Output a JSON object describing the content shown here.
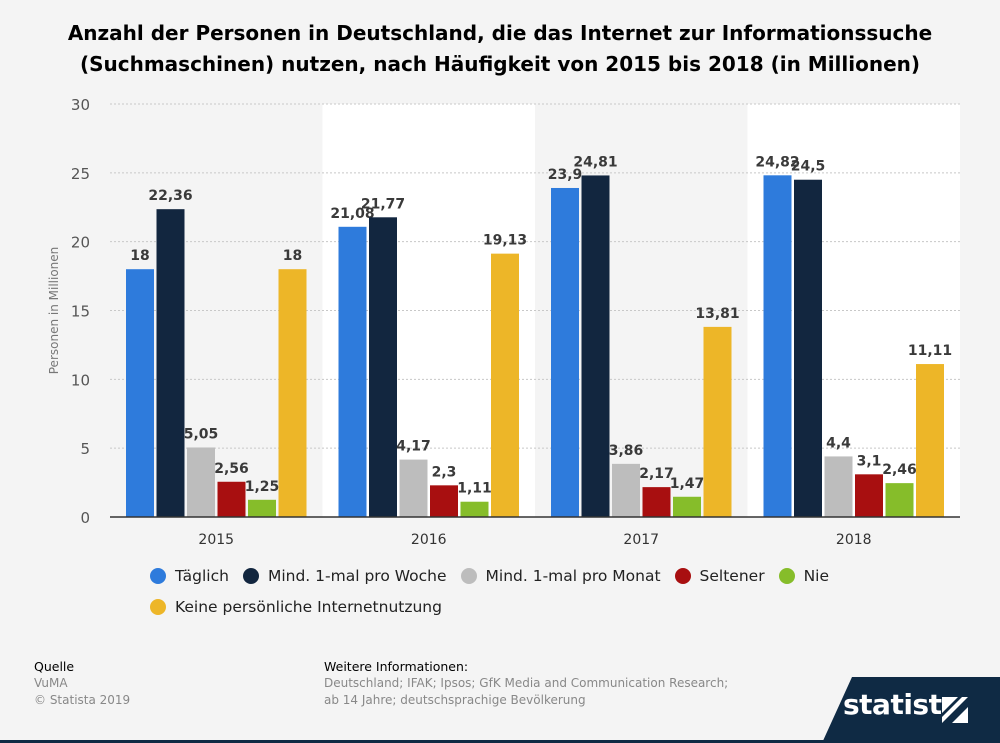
{
  "header": {
    "title_line1": "Anzahl der Personen in Deutschland, die das Internet zur Informationssuche",
    "title_line2": "(Suchmaschinen) nutzen, nach Häufigkeit von 2015 bis 2018 (in Millionen)"
  },
  "chart_data": {
    "type": "bar",
    "title": "Anzahl der Personen in Deutschland, die das Internet zur Informationssuche (Suchmaschinen) nutzen, nach Häufigkeit von 2015 bis 2018 (in Millionen)",
    "xlabel": "",
    "ylabel": "Personen in Millionen",
    "ylim": [
      0,
      30
    ],
    "yticks": [
      0,
      5,
      10,
      15,
      20,
      25,
      30
    ],
    "ytick_labels": [
      "0",
      "5",
      "10",
      "15",
      "20",
      "25",
      "30"
    ],
    "grid": true,
    "legend_position": "bottom",
    "categories": [
      "2015",
      "2016",
      "2017",
      "2018"
    ],
    "series": [
      {
        "name": "Täglich",
        "color": "#2e7bdc",
        "values": [
          18,
          21.08,
          23.9,
          24.82
        ],
        "labels": [
          "18",
          "21,08",
          "23,9",
          "24,82"
        ]
      },
      {
        "name": "Mind. 1-mal pro Woche",
        "color": "#12263f",
        "values": [
          22.36,
          21.77,
          24.81,
          24.5
        ],
        "labels": [
          "22,36",
          "21,77",
          "24,81",
          "24,5"
        ]
      },
      {
        "name": "Mind. 1-mal pro Monat",
        "color": "#bdbdbd",
        "values": [
          5.05,
          4.17,
          3.86,
          4.4
        ],
        "labels": [
          "5,05",
          "4,17",
          "3,86",
          "4,4"
        ]
      },
      {
        "name": "Seltener",
        "color": "#a80f10",
        "values": [
          2.56,
          2.3,
          2.17,
          3.1
        ],
        "labels": [
          "2,56",
          "2,3",
          "2,17",
          "3,1"
        ]
      },
      {
        "name": "Nie",
        "color": "#86bd2a",
        "values": [
          1.25,
          1.11,
          1.47,
          2.46
        ],
        "labels": [
          "1,25",
          "1,11",
          "1,47",
          "2,46"
        ]
      },
      {
        "name": "Keine persönliche Internetnutzung",
        "color": "#edb628",
        "values": [
          18,
          19.13,
          13.81,
          11.11
        ],
        "labels": [
          "18",
          "19,13",
          "13,81",
          "11,11"
        ]
      }
    ]
  },
  "footer": {
    "source_heading": "Quelle",
    "source_name": "VuMA",
    "copyright": "© Statista 2019",
    "info_heading": "Weitere Informationen:",
    "info_line1": "Deutschland; IFAK; Ipsos; GfK Media and Communication Research;",
    "info_line2": "ab 14 Jahre; deutschsprachige Bevölkerung"
  },
  "brand": {
    "logo_text": "statista",
    "logo_icon": "statista-logo-icon"
  }
}
